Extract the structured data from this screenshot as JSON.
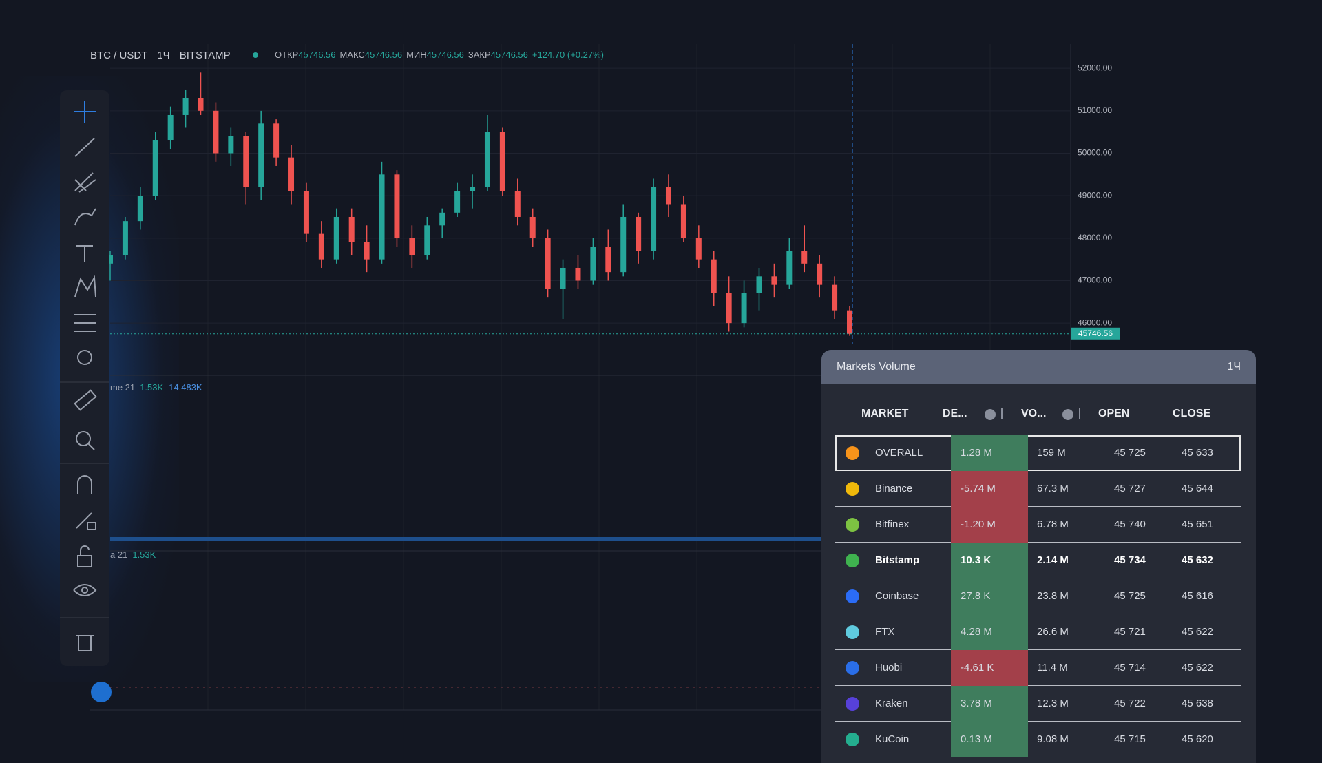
{
  "header": {
    "symbol": "BTC / USDT",
    "interval": "1Ч",
    "exchange": "BITSTAMP",
    "ohlc": [
      {
        "label": "ОТКР",
        "value": "45746.56"
      },
      {
        "label": "МАКС",
        "value": "45746.56"
      },
      {
        "label": "МИН",
        "value": "45746.56"
      },
      {
        "label": "ЗАКР",
        "value": "45746.56"
      }
    ],
    "change": "+124.70 (+0.27%)"
  },
  "chart_data": {
    "type": "candlestick",
    "candles": [
      [
        47400,
        47700,
        47000,
        47600
      ],
      [
        47600,
        48500,
        47500,
        48400
      ],
      [
        48400,
        49200,
        48200,
        49000
      ],
      [
        49000,
        50500,
        48900,
        50300
      ],
      [
        50300,
        51100,
        50100,
        50900
      ],
      [
        50900,
        51500,
        50600,
        51300
      ],
      [
        51300,
        51900,
        50900,
        51000
      ],
      [
        51000,
        51200,
        49800,
        50000
      ],
      [
        50000,
        50600,
        49700,
        50400
      ],
      [
        50400,
        50500,
        48800,
        49200
      ],
      [
        49200,
        51000,
        48900,
        50700
      ],
      [
        50700,
        50800,
        49700,
        49900
      ],
      [
        49900,
        50200,
        48800,
        49100
      ],
      [
        49100,
        49300,
        47900,
        48100
      ],
      [
        48100,
        48400,
        47300,
        47500
      ],
      [
        47500,
        48700,
        47400,
        48500
      ],
      [
        48500,
        48700,
        47600,
        47900
      ],
      [
        47900,
        48300,
        47200,
        47500
      ],
      [
        47500,
        49800,
        47400,
        49500
      ],
      [
        49500,
        49600,
        47800,
        48000
      ],
      [
        48000,
        48300,
        47300,
        47600
      ],
      [
        47600,
        48500,
        47500,
        48300
      ],
      [
        48300,
        48700,
        48000,
        48600
      ],
      [
        48600,
        49300,
        48500,
        49100
      ],
      [
        49100,
        49500,
        48700,
        49200
      ],
      [
        49200,
        50900,
        49100,
        50500
      ],
      [
        50500,
        50600,
        49000,
        49100
      ],
      [
        49100,
        49400,
        48300,
        48500
      ],
      [
        48500,
        48700,
        47800,
        48000
      ],
      [
        48000,
        48200,
        46600,
        46800
      ],
      [
        46800,
        47500,
        46100,
        47300
      ],
      [
        47300,
        47600,
        46800,
        47000
      ],
      [
        47000,
        48000,
        46900,
        47800
      ],
      [
        47800,
        48200,
        47000,
        47200
      ],
      [
        47200,
        48800,
        47100,
        48500
      ],
      [
        48500,
        48600,
        47400,
        47700
      ],
      [
        47700,
        49400,
        47500,
        49200
      ],
      [
        49200,
        49500,
        48500,
        48800
      ],
      [
        48800,
        49000,
        47900,
        48000
      ],
      [
        48000,
        48300,
        47300,
        47500
      ],
      [
        47500,
        47700,
        46400,
        46700
      ],
      [
        46700,
        47100,
        45800,
        46000
      ],
      [
        46000,
        47000,
        45900,
        46700
      ],
      [
        46700,
        47300,
        46300,
        47100
      ],
      [
        47100,
        47400,
        46600,
        46900
      ],
      [
        46900,
        48000,
        46800,
        47700
      ],
      [
        47700,
        48300,
        47200,
        47400
      ],
      [
        47400,
        47600,
        46600,
        46900
      ],
      [
        46900,
        47100,
        46100,
        46300
      ],
      [
        46300,
        46400,
        45700,
        45746.56
      ]
    ],
    "ylim": [
      44770,
      52570
    ],
    "yticks": [
      {
        "value": 52000,
        "label": "52000.00"
      },
      {
        "value": 51000,
        "label": "51000.00"
      },
      {
        "value": 50000,
        "label": "50000.00"
      },
      {
        "value": 49000,
        "label": "49000.00"
      },
      {
        "value": 48000,
        "label": "48000.00"
      },
      {
        "value": 47000,
        "label": "47000.00"
      },
      {
        "value": 46000,
        "label": "46000.00"
      }
    ],
    "last_price": {
      "value": 45746.56,
      "label": "45746.56"
    },
    "up_color": "#26a69a",
    "down_color": "#ef5350",
    "grid": true
  },
  "indicators": [
    {
      "name": "me 21",
      "values": [
        "1.53K",
        "14.483K"
      ]
    },
    {
      "name": "a 21",
      "values": [
        "1.53K"
      ]
    }
  ],
  "panel": {
    "title": "Markets Volume",
    "interval": "1Ч",
    "columns": [
      "MARKET",
      "DE...",
      "VO...",
      "OPEN",
      "CLOSE"
    ],
    "rows": [
      {
        "market": "OVERALL",
        "delta": "1.28 M",
        "volume": "159 M",
        "open": "45 725",
        "close": "45 633",
        "selected": true
      },
      {
        "market": "Binance",
        "delta": "-5.74 M",
        "volume": "67.3 M",
        "open": "45 727",
        "close": "45 644"
      },
      {
        "market": "Bitfinex",
        "delta": "-1.20 M",
        "volume": "6.78 M",
        "open": "45 740",
        "close": "45 651"
      },
      {
        "market": "Bitstamp",
        "delta": "10.3 K",
        "volume": "2.14 M",
        "open": "45 734",
        "close": "45 632",
        "bold": true
      },
      {
        "market": "Coinbase",
        "delta": "27.8 K",
        "volume": "23.8 M",
        "open": "45 725",
        "close": "45 616"
      },
      {
        "market": "FTX",
        "delta": "4.28 M",
        "volume": "26.6 M",
        "open": "45 721",
        "close": "45 622"
      },
      {
        "market": "Huobi",
        "delta": "-4.61 K",
        "volume": "11.4 M",
        "open": "45 714",
        "close": "45 622"
      },
      {
        "market": "Kraken",
        "delta": "3.78 M",
        "volume": "12.3 M",
        "open": "45 722",
        "close": "45 638"
      },
      {
        "market": "KuCoin",
        "delta": "0.13 M",
        "volume": "9.08 M",
        "open": "45 715",
        "close": "45 620"
      }
    ]
  }
}
